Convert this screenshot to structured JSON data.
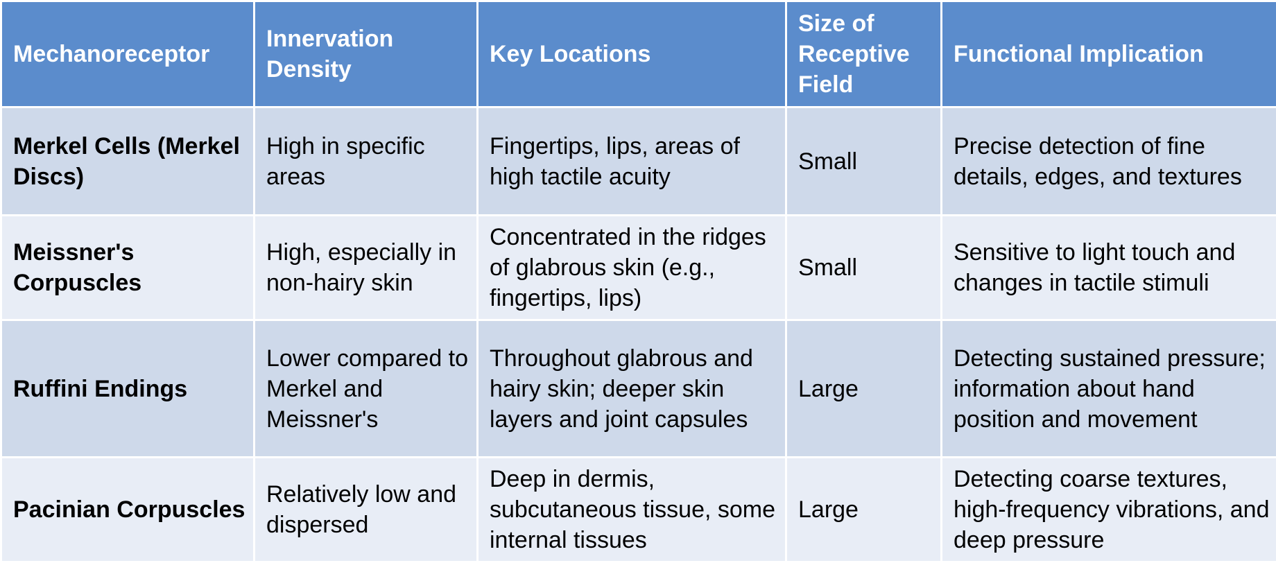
{
  "table": {
    "headers": [
      "Mechanoreceptor",
      "Innervation Density",
      "Key Locations",
      "Size of Receptive Field",
      "Functional Implication"
    ],
    "rows": [
      {
        "mechanoreceptor": "Merkel Cells (Merkel Discs)",
        "innervation_density": "High in specific areas",
        "key_locations": "Fingertips, lips, areas of high tactile acuity",
        "receptive_field_size": "Small",
        "functional_implication": "Precise detection of fine details, edges, and textures"
      },
      {
        "mechanoreceptor": "Meissner's Corpuscles",
        "innervation_density": "High, especially in non-hairy skin",
        "key_locations": "Concentrated in the ridges of glabrous skin (e.g., fingertips, lips)",
        "receptive_field_size": "Small",
        "functional_implication": "Sensitive to light touch and changes in tactile stimuli"
      },
      {
        "mechanoreceptor": "Ruffini Endings",
        "innervation_density": "Lower compared to Merkel and Meissner's",
        "key_locations": "Throughout glabrous and hairy skin; deeper skin layers and joint capsules",
        "receptive_field_size": "Large",
        "functional_implication": "Detecting sustained pressure; information about hand position and movement"
      },
      {
        "mechanoreceptor": "Pacinian Corpuscles",
        "innervation_density": "Relatively low and dispersed",
        "key_locations": "Deep in dermis, subcutaneous tissue, some internal tissues",
        "receptive_field_size": "Large",
        "functional_implication": "Detecting coarse textures, high-frequency vibrations, and deep pressure"
      }
    ]
  },
  "colors": {
    "header_background": "#5b8ccc",
    "row_odd_background": "#ced9ea",
    "row_even_background": "#e8edf6",
    "grid_lines": "#ffffff"
  }
}
